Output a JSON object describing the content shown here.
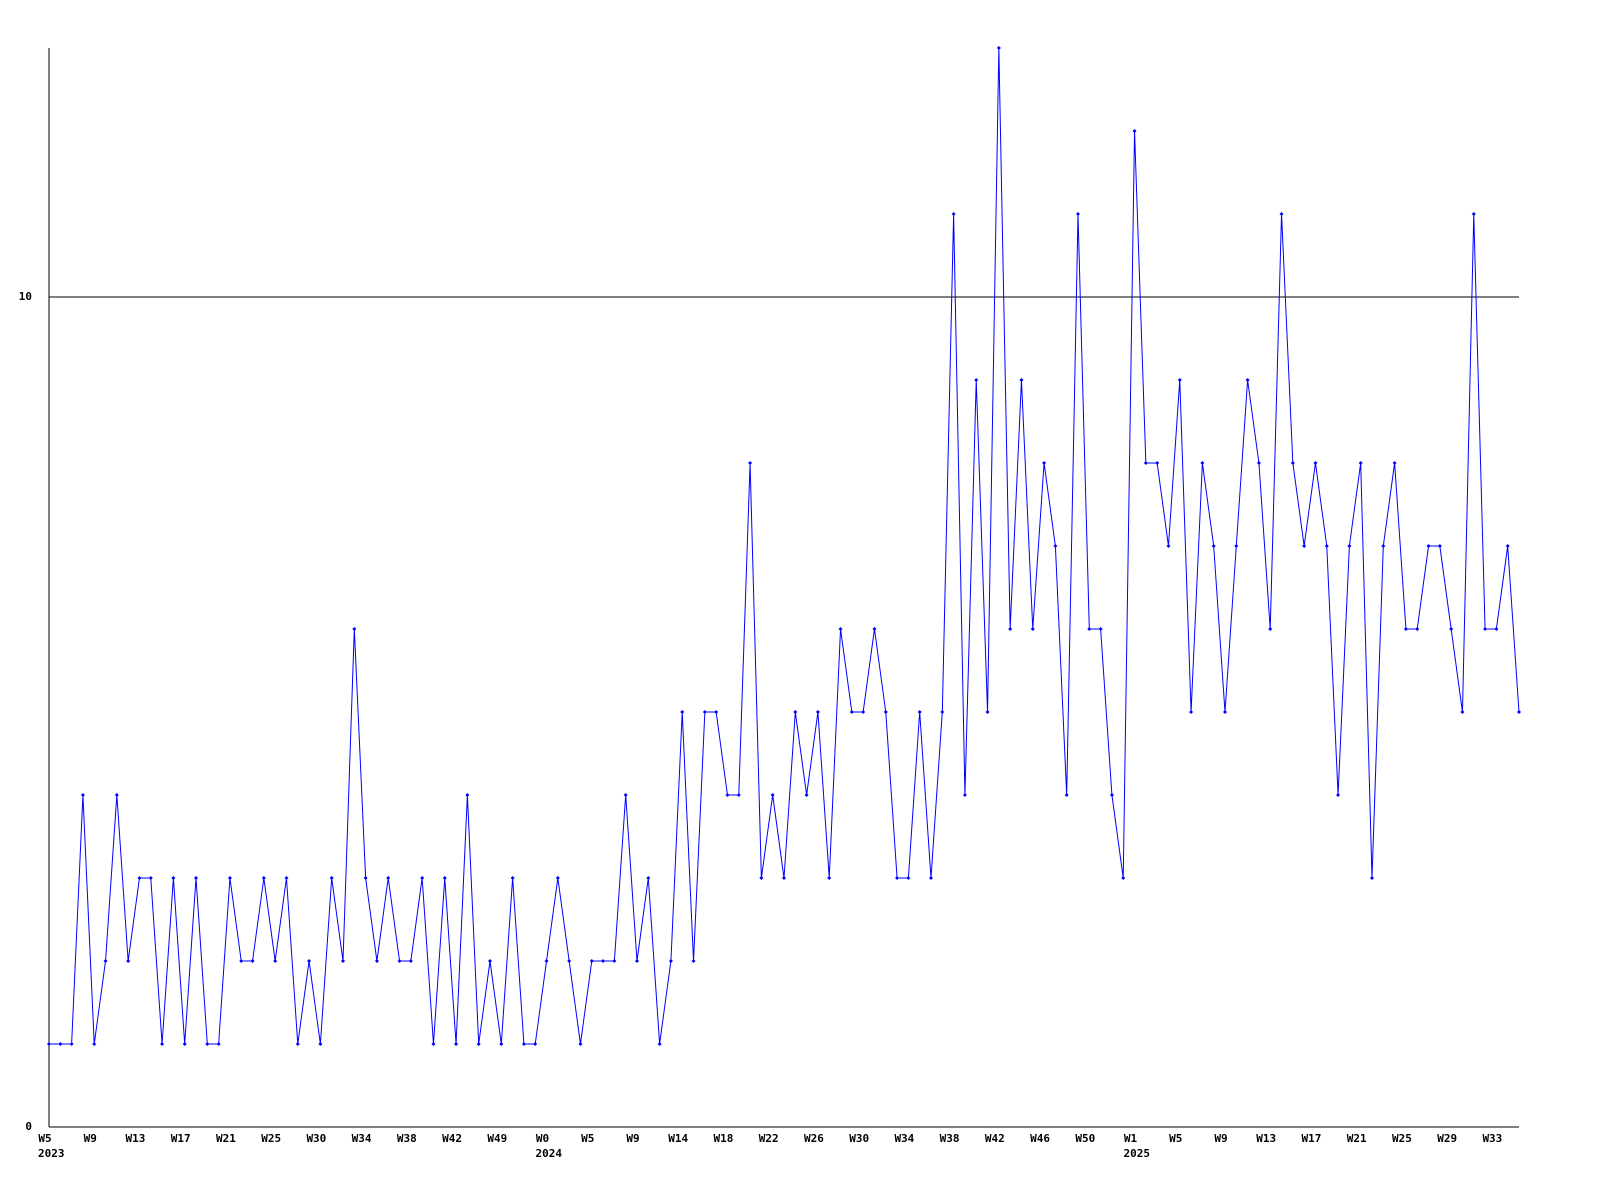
{
  "chart_data": {
    "type": "line",
    "color": "#0000ff",
    "grid": true,
    "ylim": [
      0,
      13
    ],
    "yticks": [
      0,
      10
    ],
    "categories": [
      "W5",
      null,
      null,
      null,
      "W9",
      null,
      null,
      null,
      "W13",
      null,
      null,
      null,
      "W17",
      null,
      null,
      null,
      "W21",
      null,
      null,
      null,
      "W25",
      null,
      null,
      null,
      "W30",
      null,
      null,
      null,
      "W34",
      null,
      null,
      null,
      "W38",
      null,
      null,
      null,
      "W42",
      null,
      null,
      null,
      "W49",
      null,
      null,
      null,
      "W0",
      null,
      null,
      null,
      "W5",
      null,
      null,
      null,
      "W9",
      null,
      null,
      null,
      "W14",
      null,
      null,
      null,
      "W18",
      null,
      null,
      null,
      "W22",
      null,
      null,
      null,
      "W26",
      null,
      null,
      null,
      "W30",
      null,
      null,
      null,
      "W34",
      null,
      null,
      null,
      "W38",
      null,
      null,
      null,
      "W42",
      null,
      null,
      null,
      "W46",
      null,
      null,
      null,
      "W50",
      null,
      null,
      null,
      "W1",
      null,
      null,
      null,
      "W5",
      null,
      null,
      null,
      "W9",
      null,
      null,
      null,
      "W13",
      null,
      null,
      null,
      "W17",
      null,
      null,
      null,
      "W21",
      null,
      null,
      null,
      "W25",
      null,
      null,
      null,
      "W29",
      null,
      null,
      null,
      "W33",
      null,
      null
    ],
    "year_labels": [
      "2023",
      null,
      null,
      null,
      null,
      null,
      null,
      null,
      null,
      null,
      null,
      null,
      null,
      null,
      null,
      null,
      null,
      null,
      null,
      null,
      null,
      null,
      null,
      null,
      null,
      null,
      null,
      null,
      null,
      null,
      null,
      null,
      null,
      null,
      null,
      null,
      null,
      null,
      null,
      null,
      null,
      null,
      null,
      null,
      "2024",
      null,
      null,
      null,
      null,
      null,
      null,
      null,
      null,
      null,
      null,
      null,
      null,
      null,
      null,
      null,
      null,
      null,
      null,
      null,
      null,
      null,
      null,
      null,
      null,
      null,
      null,
      null,
      null,
      null,
      null,
      null,
      null,
      null,
      null,
      null,
      null,
      null,
      null,
      null,
      null,
      null,
      null,
      null,
      null,
      null,
      null,
      null,
      null,
      null,
      null,
      null,
      "2025",
      null,
      null,
      null,
      null,
      null,
      null,
      null,
      null,
      null,
      null,
      null,
      null,
      null,
      null,
      null,
      null,
      null,
      null,
      null,
      null,
      null,
      null,
      null,
      null,
      null,
      null,
      null,
      null,
      null,
      null,
      null,
      null,
      null,
      null
    ],
    "values": [
      1,
      1,
      1,
      4,
      1,
      2,
      4,
      2,
      3,
      3,
      1,
      3,
      1,
      3,
      1,
      1,
      3,
      2,
      2,
      3,
      2,
      3,
      1,
      2,
      1,
      3,
      2,
      6,
      3,
      2,
      3,
      2,
      2,
      3,
      1,
      3,
      1,
      4,
      1,
      2,
      1,
      3,
      1,
      1,
      2,
      3,
      2,
      1,
      2,
      2,
      2,
      4,
      2,
      3,
      1,
      2,
      5,
      2,
      5,
      5,
      4,
      4,
      8,
      3,
      4,
      3,
      5,
      4,
      5,
      3,
      6,
      5,
      5,
      6,
      5,
      3,
      3,
      5,
      3,
      5,
      11,
      4,
      9,
      5,
      13,
      6,
      9,
      6,
      8,
      7,
      4,
      11,
      6,
      6,
      4,
      3,
      12,
      8,
      8,
      7,
      9,
      5,
      8,
      7,
      5,
      7,
      9,
      8,
      6,
      11,
      8,
      7,
      8,
      7,
      4,
      7,
      8,
      3,
      7,
      8,
      6,
      6,
      7,
      7,
      6,
      5,
      11,
      6,
      6,
      7,
      5
    ]
  }
}
